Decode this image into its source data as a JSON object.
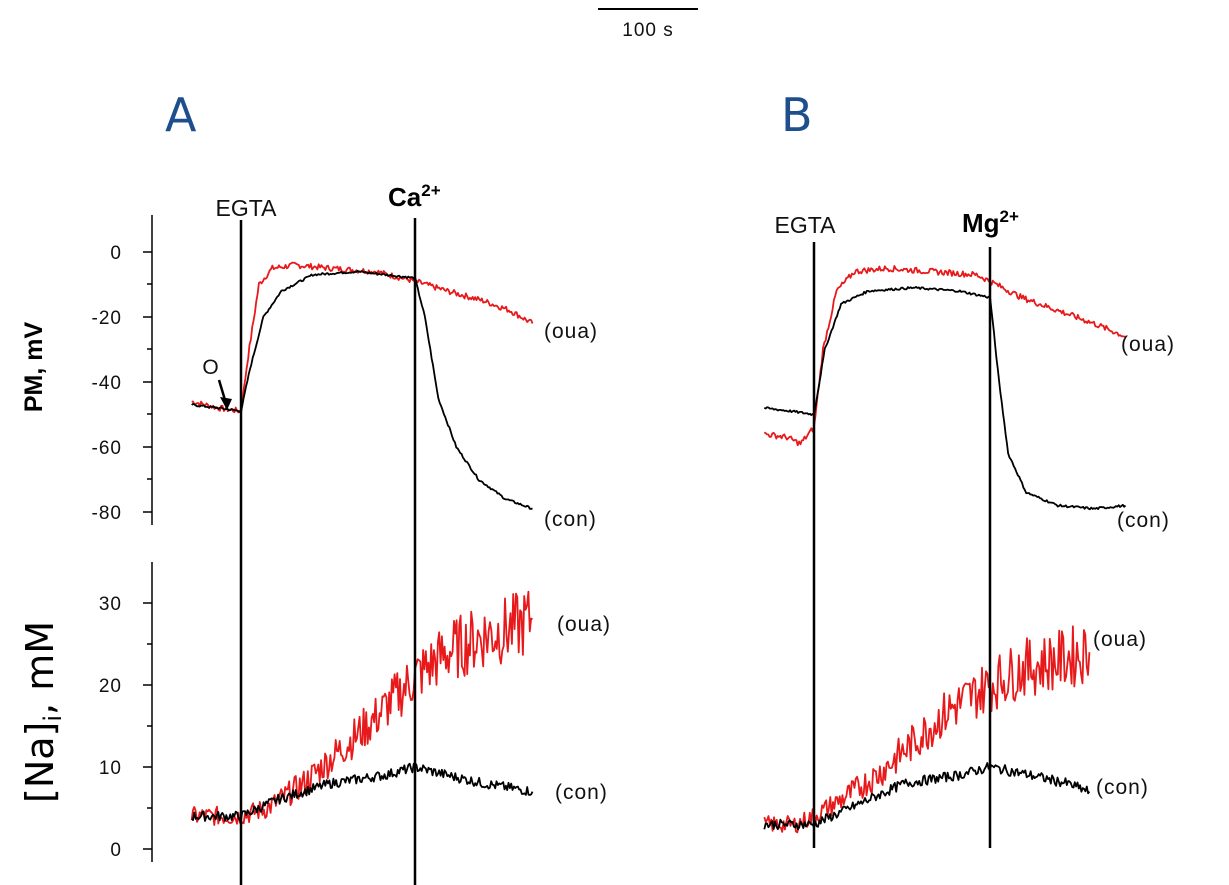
{
  "scale_bar": {
    "label": "100 s"
  },
  "panels": [
    {
      "letter": "A",
      "event_start": "EGTA",
      "event_ion": "Ca",
      "event_ion_charge": "2+",
      "start_marker": "O"
    },
    {
      "letter": "B",
      "event_start": "EGTA",
      "event_ion": "Mg",
      "event_ion_charge": "2+"
    }
  ],
  "y_axis_pm": {
    "title": "PM, mV",
    "ticks": [
      "0",
      "-20",
      "-40",
      "-60",
      "-80"
    ]
  },
  "y_axis_na": {
    "title_main": "[Na]",
    "title_sub": "i",
    "title_unit": ", mM",
    "ticks": [
      "30",
      "20",
      "10",
      "0"
    ]
  },
  "trace_labels": {
    "oua": "(oua)",
    "con": "(con)"
  },
  "colors": {
    "oua": "#e8191b",
    "con": "#000000",
    "panel_letter": "#1f4e8c"
  },
  "chart_data": [
    {
      "type": "line",
      "panel": "A",
      "measure": "PM",
      "ylabel": "PM, mV",
      "ylim": [
        -80,
        0
      ],
      "x_unit": "s",
      "events": [
        {
          "label": "EGTA",
          "x": 0
        },
        {
          "label": "Ca2+",
          "x": 194
        }
      ],
      "series": [
        {
          "name": "(oua)",
          "color": "#e8191b",
          "x": [
            -55,
            -25,
            0,
            8,
            20,
            35,
            60,
            100,
            150,
            194,
            230,
            270,
            300,
            325
          ],
          "values": [
            -46,
            -48,
            -49,
            -32,
            -10,
            -5,
            -4,
            -5,
            -6,
            -9,
            -12,
            -15,
            -18,
            -22
          ]
        },
        {
          "name": "(con)",
          "color": "#000000",
          "x": [
            -55,
            -25,
            0,
            10,
            25,
            45,
            80,
            130,
            194,
            205,
            220,
            240,
            265,
            295,
            325
          ],
          "values": [
            -47,
            -48,
            -49,
            -36,
            -20,
            -12,
            -7,
            -6,
            -8,
            -20,
            -45,
            -60,
            -70,
            -76,
            -79
          ]
        }
      ]
    },
    {
      "type": "line",
      "panel": "A",
      "measure": "[Na]i",
      "ylabel": "[Na]i, mM",
      "ylim": [
        0,
        30
      ],
      "x_unit": "s",
      "series": [
        {
          "name": "(oua)",
          "color": "#e8191b",
          "x": [
            -55,
            0,
            30,
            70,
            110,
            150,
            194,
            230,
            270,
            305,
            325
          ],
          "values": [
            4,
            4,
            5,
            8,
            12,
            16,
            21,
            24,
            26,
            27,
            28
          ]
        },
        {
          "name": "(con)",
          "color": "#000000",
          "x": [
            -55,
            0,
            40,
            100,
            160,
            194,
            230,
            270,
            325
          ],
          "values": [
            4,
            4,
            6,
            8,
            9,
            10,
            9,
            8,
            7
          ]
        }
      ]
    },
    {
      "type": "line",
      "panel": "B",
      "measure": "PM",
      "ylabel": "PM, mV",
      "ylim": [
        -80,
        0
      ],
      "x_unit": "s",
      "events": [
        {
          "label": "EGTA",
          "x": 0
        },
        {
          "label": "Mg2+",
          "x": 195
        }
      ],
      "series": [
        {
          "name": "(oua)",
          "color": "#e8191b",
          "x": [
            -55,
            -30,
            -15,
            0,
            10,
            25,
            45,
            80,
            130,
            180,
            195,
            230,
            270,
            310,
            345
          ],
          "values": [
            -56,
            -57,
            -59,
            -54,
            -30,
            -12,
            -6,
            -5,
            -6,
            -7,
            -9,
            -14,
            -18,
            -22,
            -26
          ]
        },
        {
          "name": "(con)",
          "color": "#000000",
          "x": [
            -55,
            -25,
            0,
            12,
            30,
            60,
            110,
            160,
            195,
            205,
            215,
            235,
            270,
            310,
            345
          ],
          "values": [
            -48,
            -49,
            -50,
            -30,
            -16,
            -12,
            -11,
            -12,
            -14,
            -40,
            -62,
            -74,
            -78,
            -79,
            -78
          ]
        }
      ]
    },
    {
      "type": "line",
      "panel": "B",
      "measure": "[Na]i",
      "ylabel": "[Na]i, mM",
      "ylim": [
        0,
        30
      ],
      "x_unit": "s",
      "series": [
        {
          "name": "(oua)",
          "color": "#e8191b",
          "x": [
            -55,
            -20,
            0,
            30,
            70,
            110,
            150,
            195,
            230,
            270,
            305
          ],
          "values": [
            3,
            3,
            4,
            6,
            9,
            13,
            17,
            20,
            22,
            23,
            24
          ]
        },
        {
          "name": "(con)",
          "color": "#000000",
          "x": [
            -55,
            0,
            40,
            100,
            160,
            195,
            240,
            280,
            305
          ],
          "values": [
            3,
            3,
            5,
            8,
            9,
            10,
            9,
            8,
            7
          ]
        }
      ]
    }
  ]
}
